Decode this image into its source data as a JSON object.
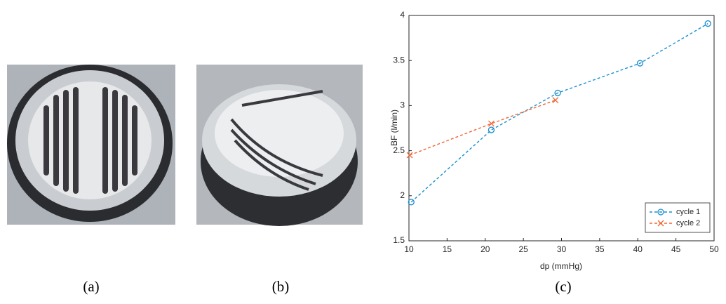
{
  "panels": [
    "(a)",
    "(b)",
    "(c)"
  ],
  "chart_data": {
    "type": "line",
    "xlabel": "dp (mmHg)",
    "ylabel": "BF (l/min)",
    "series": [
      {
        "name": "cycle 1",
        "color": "#1a8fd0",
        "marker": "circle",
        "x": [
          10.3,
          20.8,
          29.5,
          40.3,
          49.2
        ],
        "values": [
          1.93,
          2.73,
          3.14,
          3.47,
          3.91
        ]
      },
      {
        "name": "cycle 2",
        "color": "#f26430",
        "marker": "x",
        "x": [
          10.1,
          20.8,
          29.2
        ],
        "values": [
          2.45,
          2.8,
          3.06
        ]
      }
    ],
    "xlim": [
      10,
      50
    ],
    "xticks": [
      10,
      15,
      20,
      25,
      30,
      35,
      40,
      45,
      50
    ],
    "ylim": [
      1.5,
      4
    ],
    "yticks": [
      1.5,
      2,
      2.5,
      3,
      3.5,
      4
    ],
    "legend": "lower right",
    "grid": false
  }
}
